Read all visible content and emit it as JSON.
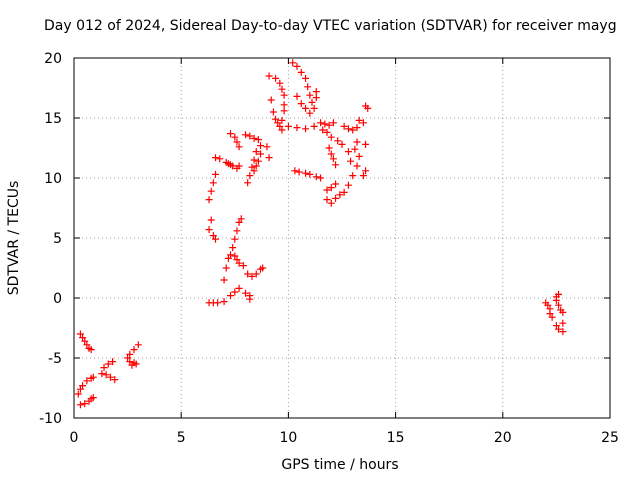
{
  "chart_data": {
    "type": "scatter",
    "title": "Day 012 of 2024, Sidereal Day-to-day VTEC variation (SDTVAR) for receiver mayg",
    "xlabel": "GPS time / hours",
    "ylabel": "SDTVAR / TECUs",
    "xlim": [
      0,
      25
    ],
    "ylim": [
      -10,
      20
    ],
    "xticks": [
      "0",
      "5",
      "10",
      "15",
      "20",
      "25"
    ],
    "yticks": [
      "-10",
      "-5",
      "0",
      "5",
      "10",
      "15",
      "20"
    ],
    "grid": true,
    "legend": "none",
    "marker": "+",
    "color": "#ff0000",
    "series": [
      {
        "points": [
          [
            0.3,
            -3.0
          ],
          [
            0.4,
            -3.3
          ],
          [
            0.5,
            -3.6
          ],
          [
            0.6,
            -3.9
          ],
          [
            0.7,
            -4.2
          ],
          [
            0.8,
            -4.3
          ],
          [
            0.2,
            -8.0
          ],
          [
            0.3,
            -7.6
          ],
          [
            0.4,
            -7.3
          ],
          [
            0.6,
            -6.9
          ],
          [
            0.8,
            -6.7
          ],
          [
            0.9,
            -6.6
          ],
          [
            0.3,
            -8.9
          ],
          [
            0.5,
            -8.8
          ],
          [
            0.7,
            -8.6
          ],
          [
            0.8,
            -8.4
          ],
          [
            0.9,
            -8.3
          ],
          [
            1.3,
            -6.3
          ],
          [
            1.5,
            -6.4
          ],
          [
            1.7,
            -6.6
          ],
          [
            1.9,
            -6.8
          ],
          [
            1.4,
            -5.8
          ],
          [
            1.6,
            -5.5
          ],
          [
            1.8,
            -5.3
          ],
          [
            2.5,
            -5.0
          ],
          [
            2.6,
            -5.3
          ],
          [
            2.8,
            -5.4
          ],
          [
            2.9,
            -5.5
          ],
          [
            2.6,
            -4.7
          ],
          [
            2.8,
            -4.3
          ],
          [
            3.0,
            -3.9
          ],
          [
            2.7,
            -5.6
          ],
          [
            6.3,
            -0.4
          ],
          [
            6.5,
            -0.4
          ],
          [
            6.7,
            -0.4
          ],
          [
            7.0,
            -0.3
          ],
          [
            7.3,
            0.2
          ],
          [
            7.5,
            0.5
          ],
          [
            7.7,
            0.8
          ],
          [
            8.0,
            0.4
          ],
          [
            8.2,
            0.2
          ],
          [
            8.2,
            -0.1
          ],
          [
            7.0,
            1.5
          ],
          [
            7.1,
            2.5
          ],
          [
            7.2,
            3.3
          ],
          [
            7.3,
            3.6
          ],
          [
            7.5,
            3.5
          ],
          [
            7.6,
            3.2
          ],
          [
            7.7,
            2.9
          ],
          [
            7.9,
            2.7
          ],
          [
            7.4,
            4.2
          ],
          [
            7.5,
            4.9
          ],
          [
            7.6,
            5.6
          ],
          [
            7.7,
            6.3
          ],
          [
            7.8,
            6.6
          ],
          [
            8.1,
            2.0
          ],
          [
            8.3,
            1.8
          ],
          [
            8.5,
            2.0
          ],
          [
            8.7,
            2.4
          ],
          [
            8.8,
            2.5
          ],
          [
            6.3,
            5.7
          ],
          [
            6.4,
            6.5
          ],
          [
            6.5,
            5.2
          ],
          [
            6.6,
            4.9
          ],
          [
            6.3,
            8.2
          ],
          [
            6.4,
            8.9
          ],
          [
            6.5,
            9.6
          ],
          [
            6.6,
            10.3
          ],
          [
            6.6,
            11.7
          ],
          [
            6.8,
            11.6
          ],
          [
            7.1,
            11.3
          ],
          [
            7.2,
            11.2
          ],
          [
            7.3,
            11.1
          ],
          [
            7.4,
            11.0
          ],
          [
            7.6,
            10.8
          ],
          [
            7.7,
            11.0
          ],
          [
            7.3,
            13.7
          ],
          [
            7.5,
            13.4
          ],
          [
            7.6,
            13.0
          ],
          [
            7.7,
            12.6
          ],
          [
            8.0,
            13.6
          ],
          [
            8.2,
            13.5
          ],
          [
            8.4,
            13.3
          ],
          [
            8.6,
            13.2
          ],
          [
            8.7,
            12.7
          ],
          [
            8.7,
            12.0
          ],
          [
            8.6,
            11.4
          ],
          [
            8.5,
            11.0
          ],
          [
            8.4,
            10.6
          ],
          [
            8.1,
            9.6
          ],
          [
            8.2,
            10.2
          ],
          [
            8.3,
            10.9
          ],
          [
            8.4,
            11.5
          ],
          [
            8.5,
            12.2
          ],
          [
            9.0,
            12.6
          ],
          [
            9.1,
            11.7
          ],
          [
            9.2,
            16.5
          ],
          [
            9.3,
            15.5
          ],
          [
            9.4,
            14.9
          ],
          [
            9.5,
            14.6
          ],
          [
            9.6,
            14.3
          ],
          [
            9.1,
            18.5
          ],
          [
            9.4,
            18.3
          ],
          [
            9.6,
            17.9
          ],
          [
            9.7,
            17.4
          ],
          [
            9.8,
            16.9
          ],
          [
            9.8,
            16.1
          ],
          [
            9.8,
            15.6
          ],
          [
            9.7,
            14.8
          ],
          [
            9.7,
            14.0
          ],
          [
            10.2,
            19.6
          ],
          [
            10.4,
            19.3
          ],
          [
            10.6,
            18.8
          ],
          [
            10.8,
            18.3
          ],
          [
            10.9,
            17.6
          ],
          [
            11.0,
            16.9
          ],
          [
            11.1,
            16.3
          ],
          [
            11.2,
            15.8
          ],
          [
            10.4,
            16.8
          ],
          [
            10.6,
            16.2
          ],
          [
            10.8,
            15.8
          ],
          [
            11.0,
            15.4
          ],
          [
            10.0,
            14.3
          ],
          [
            10.4,
            14.2
          ],
          [
            10.8,
            14.1
          ],
          [
            11.2,
            14.3
          ],
          [
            10.3,
            10.6
          ],
          [
            10.5,
            10.5
          ],
          [
            10.8,
            10.4
          ],
          [
            11.0,
            10.3
          ],
          [
            11.3,
            10.1
          ],
          [
            11.5,
            10.0
          ],
          [
            11.3,
            17.2
          ],
          [
            11.3,
            16.7
          ],
          [
            11.5,
            14.6
          ],
          [
            11.7,
            14.5
          ],
          [
            11.9,
            14.4
          ],
          [
            12.1,
            14.6
          ],
          [
            11.6,
            14.0
          ],
          [
            11.8,
            13.8
          ],
          [
            12.0,
            13.4
          ],
          [
            11.8,
            8.2
          ],
          [
            12.0,
            7.9
          ],
          [
            12.2,
            8.3
          ],
          [
            12.4,
            8.6
          ],
          [
            12.6,
            8.8
          ],
          [
            12.8,
            9.4
          ],
          [
            13.0,
            10.2
          ],
          [
            13.2,
            11.0
          ],
          [
            13.3,
            11.8
          ],
          [
            11.8,
            9.0
          ],
          [
            12.0,
            9.2
          ],
          [
            12.2,
            9.5
          ],
          [
            12.2,
            11.1
          ],
          [
            12.1,
            11.6
          ],
          [
            12.0,
            12.0
          ],
          [
            11.9,
            12.5
          ],
          [
            12.3,
            13.1
          ],
          [
            12.5,
            12.8
          ],
          [
            12.8,
            12.2
          ],
          [
            12.9,
            11.4
          ],
          [
            12.6,
            14.3
          ],
          [
            12.8,
            14.1
          ],
          [
            13.0,
            14.0
          ],
          [
            13.2,
            14.2
          ],
          [
            13.3,
            14.8
          ],
          [
            13.2,
            13.0
          ],
          [
            13.1,
            12.4
          ],
          [
            13.6,
            16.0
          ],
          [
            13.7,
            15.8
          ],
          [
            13.5,
            14.6
          ],
          [
            13.6,
            12.8
          ],
          [
            13.6,
            10.6
          ],
          [
            13.5,
            10.2
          ]
        ]
      },
      {
        "points": [
          [
            22.0,
            -0.4
          ],
          [
            22.1,
            -0.6
          ],
          [
            22.2,
            -0.9
          ],
          [
            22.2,
            -1.3
          ],
          [
            22.3,
            -1.6
          ],
          [
            22.5,
            -2.3
          ],
          [
            22.6,
            -2.6
          ],
          [
            22.8,
            -2.8
          ],
          [
            22.6,
            0.3
          ],
          [
            22.5,
            0.1
          ],
          [
            22.5,
            -0.2
          ],
          [
            22.6,
            -0.6
          ],
          [
            22.7,
            -1.0
          ],
          [
            22.8,
            -1.2
          ],
          [
            22.8,
            -2.1
          ]
        ]
      }
    ]
  }
}
